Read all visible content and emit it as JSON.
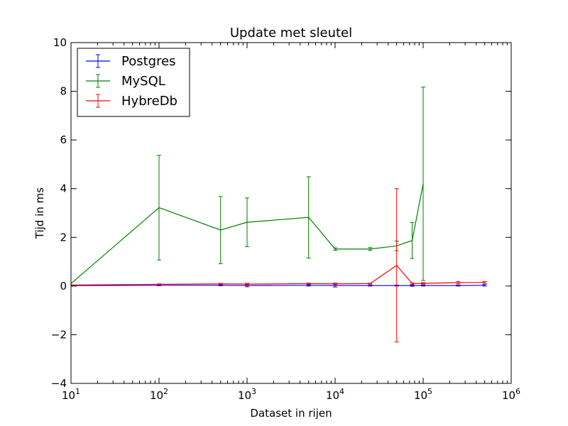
{
  "chart_data": {
    "type": "line",
    "title": "Update met sleutel",
    "xlabel": "Dataset in rijen",
    "ylabel": "Tijd in ms",
    "xscale": "log",
    "xlim": [
      10,
      1000000
    ],
    "ylim": [
      -4,
      10
    ],
    "x_ticks": [
      {
        "value": 10,
        "base": "10",
        "exp": "1"
      },
      {
        "value": 100,
        "base": "10",
        "exp": "2"
      },
      {
        "value": 1000,
        "base": "10",
        "exp": "3"
      },
      {
        "value": 10000,
        "base": "10",
        "exp": "4"
      },
      {
        "value": 100000,
        "base": "10",
        "exp": "5"
      },
      {
        "value": 1000000,
        "base": "10",
        "exp": "6"
      }
    ],
    "y_ticks": [
      {
        "value": -4,
        "label": "−4"
      },
      {
        "value": -2,
        "label": "−2"
      },
      {
        "value": 0,
        "label": "0"
      },
      {
        "value": 2,
        "label": "2"
      },
      {
        "value": 4,
        "label": "4"
      },
      {
        "value": 6,
        "label": "6"
      },
      {
        "value": 8,
        "label": "8"
      },
      {
        "value": 10,
        "label": "10"
      }
    ],
    "grid": false,
    "legend_position": "top-left",
    "series": [
      {
        "name": "Postgres",
        "color": "#0000ff",
        "x": [
          10,
          100,
          500,
          1000,
          5000,
          10000,
          25000,
          50000,
          75000,
          100000,
          250000,
          500000
        ],
        "y": [
          0.02,
          0.03,
          0.03,
          0.02,
          0.03,
          0.02,
          0.02,
          0.02,
          0.02,
          0.02,
          0.02,
          0.03
        ],
        "err": [
          0.02,
          0.02,
          0.02,
          0.05,
          0.03,
          0.06,
          0.02,
          0.02,
          0.03,
          0.02,
          0.02,
          0.03
        ]
      },
      {
        "name": "MySQL",
        "color": "#008000",
        "x": [
          10,
          100,
          500,
          1000,
          5000,
          10000,
          25000,
          50000,
          75000,
          100000
        ],
        "y": [
          0.1,
          3.22,
          2.3,
          2.62,
          2.82,
          1.52,
          1.52,
          1.65,
          1.87,
          4.2
        ],
        "err": [
          0.0,
          2.15,
          1.38,
          1.0,
          1.67,
          0.05,
          0.06,
          0.2,
          0.74,
          3.97
        ]
      },
      {
        "name": "HybreDb",
        "color": "#ff0000",
        "x": [
          10,
          100,
          500,
          1000,
          5000,
          10000,
          25000,
          50000,
          75000,
          100000,
          250000,
          500000
        ],
        "y": [
          0.04,
          0.07,
          0.09,
          0.08,
          0.1,
          0.09,
          0.1,
          0.85,
          0.1,
          0.11,
          0.14,
          0.15
        ],
        "err": [
          0.01,
          0.02,
          0.02,
          0.03,
          0.02,
          0.03,
          0.02,
          3.15,
          0.03,
          0.03,
          0.05,
          0.04
        ]
      }
    ]
  }
}
